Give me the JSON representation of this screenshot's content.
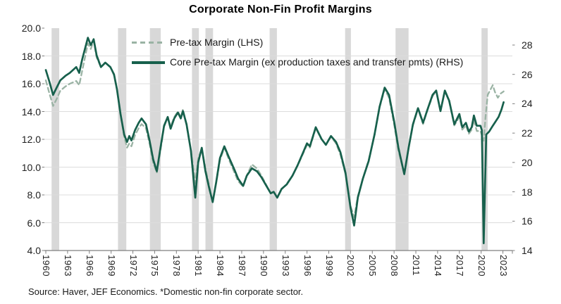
{
  "title": "Corporate Non-Fin Profit Margins",
  "source_note": "Source: Haver, JEF Economics. *Domestic non-fin corporate sector.",
  "legend": {
    "pretax_label": "Pre-tax Margin (LHS)",
    "core_label": "Core Pre-tax Margin (ex production taxes and transfer pmts) (RHS)"
  },
  "colors": {
    "core_line": "#17604c",
    "pretax_line": "#9ab3a4",
    "recession_band": "#d8d8d8",
    "gridline": "#dcdcdc",
    "axis": "#7f7f7f",
    "text": "#212121"
  },
  "chart_data": {
    "type": "line",
    "title": "Corporate Non-Fin Profit Margins",
    "x_axis": {
      "range": [
        1960,
        2024
      ],
      "tick_years": [
        "1960",
        "1963",
        "1966",
        "1969",
        "1972",
        "1975",
        "1978",
        "1981",
        "1984",
        "1987",
        "1990",
        "1993",
        "1996",
        "1999",
        "2002",
        "2005",
        "2008",
        "2011",
        "2014",
        "2017",
        "2020",
        "2023"
      ]
    },
    "left_axis": {
      "range": [
        4,
        20
      ],
      "tick_labels": [
        "20.0",
        "18.0",
        "16.0",
        "14.0",
        "12.0",
        "10.0",
        "8.0",
        "6.0",
        "4.0"
      ],
      "tick_values": [
        20,
        18,
        16,
        14,
        12,
        10,
        8,
        6,
        4
      ],
      "gridline_values": [
        18,
        16,
        14,
        12,
        10,
        8,
        6
      ]
    },
    "right_axis": {
      "range": [
        14,
        28
      ],
      "tick_labels": [
        "28",
        "26",
        "24",
        "22",
        "20",
        "18",
        "16",
        "14"
      ],
      "tick_values": [
        28,
        26,
        24,
        22,
        20,
        18,
        16,
        14
      ]
    },
    "grid": "horizontal-only",
    "legend_position": "top-inside",
    "recession_bands": [
      [
        1960.8,
        1961.85
      ],
      [
        1969.95,
        1971.1
      ],
      [
        1974.35,
        1975.85
      ],
      [
        1980.15,
        1981.1
      ],
      [
        1982.0,
        1983.05
      ],
      [
        1990.85,
        1991.85
      ],
      [
        2001.25,
        2002.05
      ],
      [
        2008.2,
        2010.0
      ],
      [
        2020.05,
        2020.9
      ]
    ],
    "series": [
      {
        "name": "Pre-tax Margin (LHS)",
        "axis": "left",
        "style": "dashed",
        "points": [
          [
            1960.0,
            16.25
          ],
          [
            1960.5,
            15.3
          ],
          [
            1961.0,
            14.4
          ],
          [
            1961.5,
            14.9
          ],
          [
            1962.0,
            15.5
          ],
          [
            1962.7,
            15.8
          ],
          [
            1963.3,
            16.0
          ],
          [
            1964.2,
            16.2
          ],
          [
            1964.6,
            15.9
          ],
          [
            1965.0,
            16.9
          ],
          [
            1965.8,
            18.9
          ],
          [
            1966.2,
            18.5
          ],
          [
            1966.6,
            19.1
          ],
          [
            1967.0,
            17.9
          ],
          [
            1967.6,
            17.2
          ],
          [
            1968.2,
            17.5
          ],
          [
            1968.9,
            17.2
          ],
          [
            1969.4,
            16.6
          ],
          [
            1969.8,
            15.6
          ],
          [
            1970.3,
            13.8
          ],
          [
            1970.8,
            12.2
          ],
          [
            1971.2,
            11.4
          ],
          [
            1971.5,
            11.7
          ],
          [
            1971.8,
            11.5
          ],
          [
            1972.3,
            12.3
          ],
          [
            1972.8,
            12.8
          ],
          [
            1973.2,
            13.1
          ],
          [
            1973.8,
            12.8
          ],
          [
            1974.3,
            11.7
          ],
          [
            1974.8,
            10.3
          ],
          [
            1975.3,
            9.6
          ],
          [
            1975.8,
            11.2
          ],
          [
            1976.3,
            12.9
          ],
          [
            1976.8,
            13.6
          ],
          [
            1977.2,
            12.9
          ],
          [
            1977.7,
            13.6
          ],
          [
            1978.2,
            14.0
          ],
          [
            1978.6,
            13.6
          ],
          [
            1978.9,
            14.15
          ],
          [
            1979.4,
            13.0
          ],
          [
            1980.0,
            11.2
          ],
          [
            1980.6,
            8.85
          ],
          [
            1981.0,
            10.6
          ],
          [
            1981.5,
            11.35
          ],
          [
            1982.0,
            9.9
          ],
          [
            1982.5,
            8.7
          ],
          [
            1983.0,
            7.5
          ],
          [
            1983.5,
            8.9
          ],
          [
            1984.0,
            10.5
          ],
          [
            1984.6,
            11.4
          ],
          [
            1985.2,
            10.6
          ],
          [
            1986.0,
            9.6
          ],
          [
            1986.5,
            9.0
          ],
          [
            1987.2,
            8.6
          ],
          [
            1987.7,
            9.4
          ],
          [
            1988.4,
            10.2
          ],
          [
            1989.1,
            9.9
          ],
          [
            1989.7,
            9.4
          ],
          [
            1990.4,
            8.7
          ],
          [
            1991.0,
            8.1
          ],
          [
            1991.4,
            8.2
          ],
          [
            1991.9,
            7.8
          ],
          [
            1992.5,
            8.4
          ],
          [
            1993.2,
            8.8
          ],
          [
            1994.0,
            9.4
          ],
          [
            1994.7,
            10.1
          ],
          [
            1995.4,
            10.9
          ],
          [
            1996.0,
            11.6
          ],
          [
            1996.4,
            11.4
          ],
          [
            1997.2,
            12.8
          ],
          [
            1998.0,
            12.0
          ],
          [
            1998.6,
            11.6
          ],
          [
            1999.3,
            12.2
          ],
          [
            2000.0,
            11.7
          ],
          [
            2000.6,
            10.9
          ],
          [
            2001.3,
            9.5
          ],
          [
            2002.0,
            7.2
          ],
          [
            2002.5,
            6.4
          ],
          [
            2003.0,
            7.9
          ],
          [
            2003.7,
            9.2
          ],
          [
            2004.5,
            10.5
          ],
          [
            2005.3,
            12.3
          ],
          [
            2006.0,
            14.3
          ],
          [
            2006.7,
            15.6
          ],
          [
            2007.3,
            15.0
          ],
          [
            2008.0,
            13.1
          ],
          [
            2008.6,
            11.2
          ],
          [
            2009.4,
            9.5
          ],
          [
            2010.0,
            11.4
          ],
          [
            2010.6,
            13.0
          ],
          [
            2011.3,
            14.2
          ],
          [
            2012.0,
            13.1
          ],
          [
            2012.6,
            14.1
          ],
          [
            2013.3,
            15.1
          ],
          [
            2013.8,
            15.5
          ],
          [
            2014.4,
            14.0
          ],
          [
            2015.0,
            15.5
          ],
          [
            2015.6,
            14.7
          ],
          [
            2016.3,
            13.0
          ],
          [
            2017.0,
            13.6
          ],
          [
            2017.4,
            12.7
          ],
          [
            2017.9,
            13.0
          ],
          [
            2018.3,
            12.4
          ],
          [
            2018.7,
            12.7
          ],
          [
            2019.0,
            13.4
          ],
          [
            2019.4,
            12.6
          ],
          [
            2019.9,
            12.6
          ],
          [
            2020.1,
            12.3
          ],
          [
            2020.35,
            11.9
          ],
          [
            2020.6,
            13.6
          ],
          [
            2020.9,
            15.2
          ],
          [
            2021.3,
            15.6
          ],
          [
            2021.6,
            15.9
          ],
          [
            2021.9,
            15.4
          ],
          [
            2022.3,
            15.0
          ],
          [
            2022.7,
            15.3
          ],
          [
            2023.1,
            15.45
          ]
        ]
      },
      {
        "name": "Core Pre-tax Margin (ex production taxes and transfer pmts) (RHS)",
        "axis": "right",
        "style": "solid",
        "points": [
          [
            1960.0,
            26.3
          ],
          [
            1960.5,
            25.5
          ],
          [
            1961.0,
            24.6
          ],
          [
            1961.5,
            25.1
          ],
          [
            1962.0,
            25.6
          ],
          [
            1962.7,
            25.9
          ],
          [
            1963.3,
            26.1
          ],
          [
            1964.2,
            26.5
          ],
          [
            1964.6,
            26.1
          ],
          [
            1965.0,
            27.0
          ],
          [
            1965.8,
            28.5
          ],
          [
            1966.2,
            28.0
          ],
          [
            1966.6,
            28.4
          ],
          [
            1967.0,
            27.3
          ],
          [
            1967.6,
            26.5
          ],
          [
            1968.2,
            26.8
          ],
          [
            1968.9,
            26.5
          ],
          [
            1969.4,
            26.0
          ],
          [
            1969.8,
            25.0
          ],
          [
            1970.3,
            23.3
          ],
          [
            1970.8,
            21.9
          ],
          [
            1971.2,
            21.4
          ],
          [
            1971.5,
            21.8
          ],
          [
            1971.8,
            21.5
          ],
          [
            1972.3,
            22.2
          ],
          [
            1972.8,
            22.7
          ],
          [
            1973.2,
            23.0
          ],
          [
            1973.8,
            22.6
          ],
          [
            1974.3,
            21.5
          ],
          [
            1974.8,
            20.2
          ],
          [
            1975.3,
            19.4
          ],
          [
            1975.8,
            21.0
          ],
          [
            1976.3,
            22.5
          ],
          [
            1976.8,
            23.1
          ],
          [
            1977.2,
            22.3
          ],
          [
            1977.7,
            23.0
          ],
          [
            1978.2,
            23.4
          ],
          [
            1978.6,
            23.0
          ],
          [
            1978.9,
            23.5
          ],
          [
            1979.4,
            22.6
          ],
          [
            1980.0,
            20.8
          ],
          [
            1980.6,
            17.6
          ],
          [
            1981.0,
            20.0
          ],
          [
            1981.5,
            21.0
          ],
          [
            1982.0,
            19.4
          ],
          [
            1982.5,
            18.3
          ],
          [
            1983.0,
            17.3
          ],
          [
            1983.5,
            18.7
          ],
          [
            1984.0,
            20.3
          ],
          [
            1984.6,
            21.1
          ],
          [
            1985.2,
            20.4
          ],
          [
            1986.0,
            19.5
          ],
          [
            1986.5,
            18.9
          ],
          [
            1987.2,
            18.4
          ],
          [
            1987.7,
            19.1
          ],
          [
            1988.4,
            19.6
          ],
          [
            1989.1,
            19.4
          ],
          [
            1989.7,
            19.0
          ],
          [
            1990.4,
            18.4
          ],
          [
            1991.0,
            17.9
          ],
          [
            1991.4,
            18.0
          ],
          [
            1991.9,
            17.6
          ],
          [
            1992.5,
            18.2
          ],
          [
            1993.2,
            18.5
          ],
          [
            1994.0,
            19.1
          ],
          [
            1994.7,
            19.8
          ],
          [
            1995.4,
            20.6
          ],
          [
            1996.0,
            21.3
          ],
          [
            1996.4,
            21.1
          ],
          [
            1997.2,
            22.4
          ],
          [
            1998.0,
            21.6
          ],
          [
            1998.6,
            21.2
          ],
          [
            1999.3,
            21.8
          ],
          [
            2000.0,
            21.4
          ],
          [
            2000.6,
            20.7
          ],
          [
            2001.3,
            19.3
          ],
          [
            2002.0,
            16.9
          ],
          [
            2002.5,
            15.7
          ],
          [
            2003.0,
            17.6
          ],
          [
            2003.7,
            18.9
          ],
          [
            2004.5,
            20.1
          ],
          [
            2005.3,
            21.9
          ],
          [
            2006.0,
            23.8
          ],
          [
            2006.7,
            25.1
          ],
          [
            2007.3,
            24.6
          ],
          [
            2008.0,
            22.8
          ],
          [
            2008.6,
            21.0
          ],
          [
            2009.4,
            19.2
          ],
          [
            2010.0,
            21.0
          ],
          [
            2010.6,
            22.6
          ],
          [
            2011.3,
            23.7
          ],
          [
            2012.0,
            22.7
          ],
          [
            2012.6,
            23.6
          ],
          [
            2013.3,
            24.6
          ],
          [
            2013.8,
            24.9
          ],
          [
            2014.4,
            23.5
          ],
          [
            2015.0,
            24.9
          ],
          [
            2015.6,
            24.2
          ],
          [
            2016.3,
            22.6
          ],
          [
            2017.0,
            23.3
          ],
          [
            2017.4,
            22.4
          ],
          [
            2017.9,
            22.7
          ],
          [
            2018.3,
            22.1
          ],
          [
            2018.7,
            22.4
          ],
          [
            2019.0,
            23.2
          ],
          [
            2019.4,
            22.5
          ],
          [
            2019.9,
            22.5
          ],
          [
            2020.1,
            22.2
          ],
          [
            2020.35,
            14.5
          ],
          [
            2020.7,
            21.9
          ],
          [
            2021.1,
            22.1
          ],
          [
            2021.6,
            22.5
          ],
          [
            2022.0,
            22.8
          ],
          [
            2022.4,
            23.1
          ],
          [
            2022.8,
            23.6
          ],
          [
            2023.1,
            24.1
          ]
        ]
      }
    ]
  }
}
